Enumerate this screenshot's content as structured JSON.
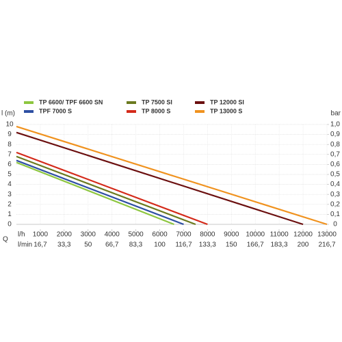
{
  "chart_data": {
    "type": "line",
    "y_label": "l (m)",
    "y2_label": "bar",
    "x_label": "l/h",
    "x2_label": "l/min",
    "q_label": "Q",
    "xlim": [
      0,
      13000
    ],
    "xticks": [
      1000,
      2000,
      3000,
      4000,
      5000,
      6000,
      7000,
      8000,
      9000,
      10000,
      11000,
      12000,
      13000
    ],
    "x2lim": [
      0,
      216.7
    ],
    "x2ticks": [
      {
        "value": 16.7,
        "label": "16,7"
      },
      {
        "value": 33.3,
        "label": "33,3"
      },
      50,
      {
        "value": 66.7,
        "label": "66,7"
      },
      {
        "value": 83.3,
        "label": "83,3"
      },
      100,
      {
        "value": 116.7,
        "label": "116,7"
      },
      {
        "value": 133.3,
        "label": "133,3"
      },
      150,
      {
        "value": 166.7,
        "label": "166,7"
      },
      {
        "value": 183.3,
        "label": "183,3"
      },
      200,
      {
        "value": 216.7,
        "label": "216,7"
      }
    ],
    "ylim": [
      0,
      10
    ],
    "yticks": [
      0,
      1,
      2,
      3,
      4,
      5,
      6,
      7,
      8,
      9,
      10
    ],
    "y2lim": [
      0,
      1
    ],
    "y2ticks": [
      0,
      {
        "value": 0.1,
        "label": "0,1"
      },
      {
        "value": 0.2,
        "label": "0,2"
      },
      {
        "value": 0.3,
        "label": "0,3"
      },
      {
        "value": 0.4,
        "label": "0,4"
      },
      {
        "value": 0.5,
        "label": "0,5"
      },
      {
        "value": 0.6,
        "label": "0,6"
      },
      {
        "value": 0.7,
        "label": "0,7"
      },
      {
        "value": 0.8,
        "label": "0,8"
      },
      {
        "value": 0.9,
        "label": "0,9"
      },
      {
        "value": 1,
        "label": "1,0"
      }
    ],
    "grid": true,
    "series": [
      {
        "name": "TP 6600/ TPF 6600 SN",
        "color": "#8dc63f",
        "x": [
          0,
          6600
        ],
        "values": [
          6.2,
          0
        ]
      },
      {
        "name": "TPF 7000 S",
        "color": "#2e4fa3",
        "x": [
          0,
          7000
        ],
        "values": [
          6.4,
          0
        ]
      },
      {
        "name": "TP 7500 SI",
        "color": "#6b7a1f",
        "x": [
          0,
          7500
        ],
        "values": [
          6.8,
          0
        ]
      },
      {
        "name": "TP 8000 S",
        "color": "#d42a1a",
        "x": [
          0,
          8000
        ],
        "values": [
          7.2,
          0
        ]
      },
      {
        "name": "TP 12000 SI",
        "color": "#6b0f0f",
        "x": [
          0,
          12000
        ],
        "values": [
          9.2,
          0
        ]
      },
      {
        "name": "TP 13000 S",
        "color": "#f0921e",
        "x": [
          0,
          13000
        ],
        "values": [
          9.8,
          0
        ]
      }
    ]
  }
}
